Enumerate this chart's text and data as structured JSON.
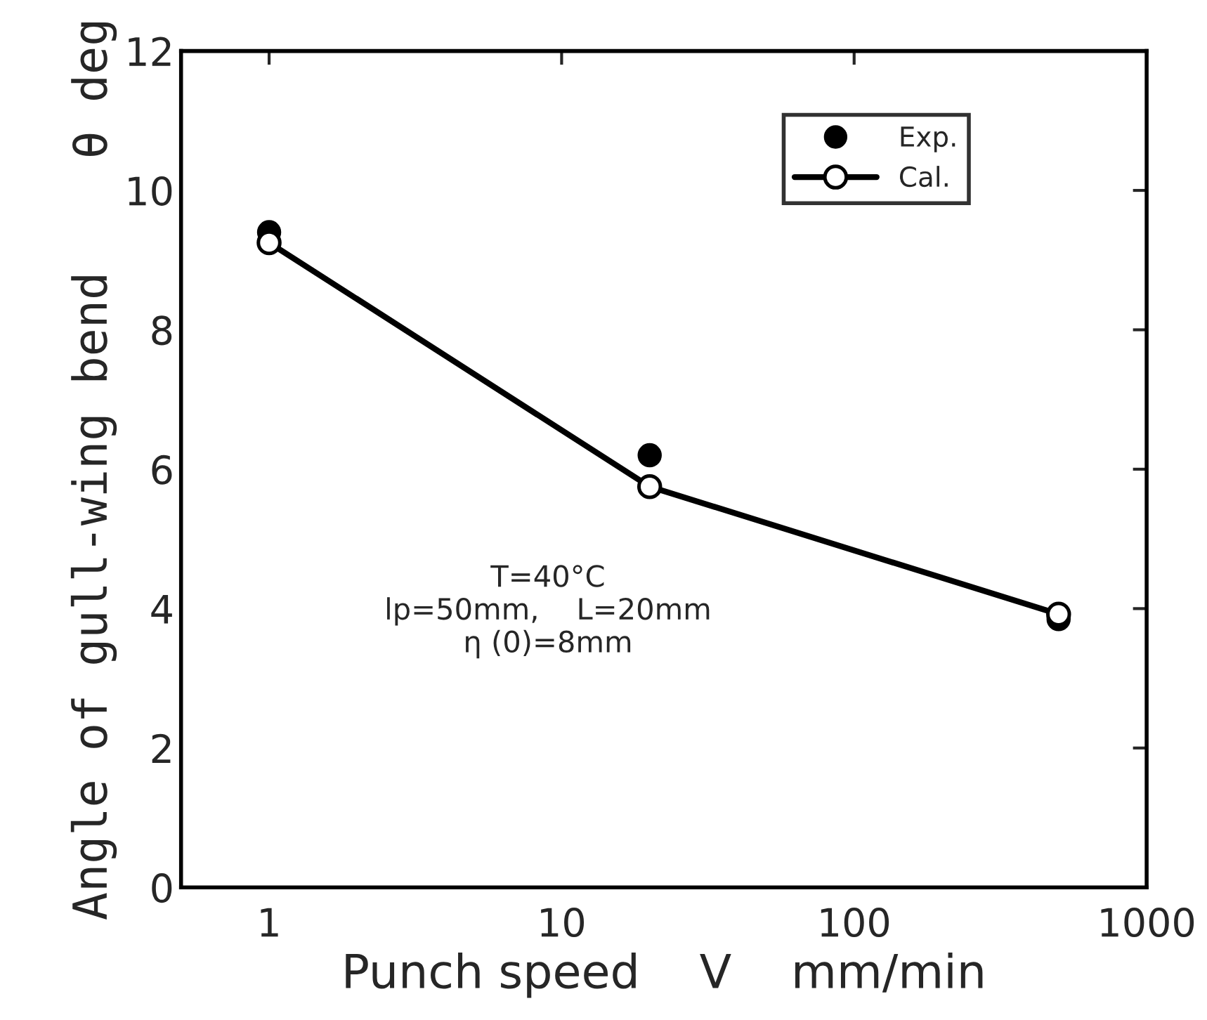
{
  "chart_data": {
    "type": "scatter",
    "xlabel": "Punch speed    V    mm/min",
    "ylabel": "Angle of gull-wing bend    θ deg",
    "x": [
      1,
      20,
      500
    ],
    "series": [
      {
        "name": "Exp.",
        "color": "#000000",
        "marker": "circle",
        "values": [
          9.4,
          6.2,
          3.85
        ]
      },
      {
        "name": "Cal.",
        "type": "line",
        "color": "#000000",
        "marker": "circle",
        "values": [
          9.25,
          5.75,
          3.92
        ]
      }
    ],
    "log": "x",
    "xlim": [
      0.5,
      1000
    ],
    "xticks": [
      1,
      10,
      100,
      1000
    ],
    "ylim": [
      0,
      12
    ],
    "yticks": [
      0,
      2,
      4,
      6,
      8,
      10,
      12
    ],
    "grid": false,
    "legend": "top right",
    "annotations": [
      "T=40°C\nlp=50mm,    L=20mm\nη (0)=8mm"
    ]
  }
}
